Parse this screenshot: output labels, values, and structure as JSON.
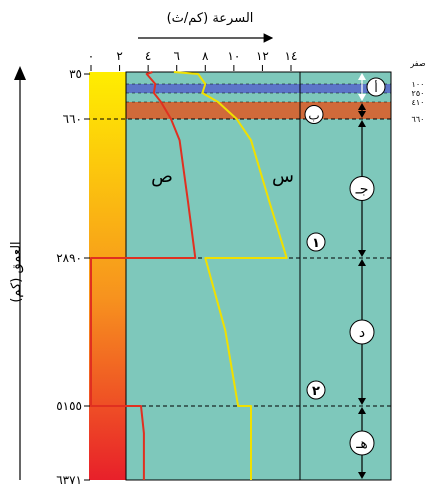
{
  "chart_data": {
    "type": "line",
    "title": "",
    "xlabel": "السرعة (كم/ث)",
    "ylabel": "العمق (كم)",
    "x_ticks": [
      "٠",
      "٢",
      "٤",
      "٦",
      "٨",
      "١٠",
      "١٢",
      "١٤"
    ],
    "x_tick_values": [
      0,
      2,
      4,
      6,
      8,
      10,
      12,
      14
    ],
    "xlim": [
      0,
      14
    ],
    "depth_labels": [
      {
        "value": 35,
        "label": "٣٥"
      },
      {
        "value": 660,
        "label": "٦٦٠"
      },
      {
        "value": 2890,
        "label": "٢٨٩٠"
      },
      {
        "value": 5155,
        "label": "٥١٥٥"
      },
      {
        "value": 6371,
        "label": "٦٣٧١"
      }
    ],
    "detail_depths": [
      {
        "value": 0,
        "label": "صفر"
      },
      {
        "value": 100,
        "label": "١٠٠"
      },
      {
        "value": 250,
        "label": "٢٥٠"
      },
      {
        "value": 410,
        "label": "٤١٠"
      },
      {
        "value": 660,
        "label": "٦٦٠"
      }
    ],
    "series": [
      {
        "name": "س",
        "color": "#f0e000",
        "points": [
          [
            5.8,
            0
          ],
          [
            7.5,
            35
          ],
          [
            8.0,
            100
          ],
          [
            7.8,
            250
          ],
          [
            8.9,
            410
          ],
          [
            10.2,
            660
          ],
          [
            11.2,
            1000
          ],
          [
            12.5,
            2000
          ],
          [
            13.7,
            2890
          ],
          [
            8.0,
            2890
          ],
          [
            9.4,
            4000
          ],
          [
            10.3,
            5155
          ],
          [
            11.2,
            5155
          ],
          [
            11.2,
            6371
          ]
        ]
      },
      {
        "name": "ص",
        "color": "#e03020",
        "points": [
          [
            4.3,
            0
          ],
          [
            3.9,
            35
          ],
          [
            4.5,
            100
          ],
          [
            4.4,
            250
          ],
          [
            4.9,
            410
          ],
          [
            5.6,
            660
          ],
          [
            6.2,
            1000
          ],
          [
            6.8,
            2000
          ],
          [
            7.3,
            2890
          ],
          [
            0,
            2890
          ],
          [
            0,
            5155
          ],
          [
            3.5,
            5155
          ],
          [
            3.7,
            5600
          ],
          [
            3.7,
            6371
          ]
        ]
      }
    ],
    "layers": [
      {
        "letter": "أ",
        "from": 0,
        "to": 410
      },
      {
        "letter": "ب",
        "from": 410,
        "to": 660
      },
      {
        "letter": "جـ",
        "from": 660,
        "to": 2890
      },
      {
        "letter": "د",
        "from": 2890,
        "to": 5155
      },
      {
        "letter": "هـ",
        "from": 5155,
        "to": 6371
      }
    ],
    "boundaries": [
      {
        "label": "١",
        "depth": 2890
      },
      {
        "label": "٢",
        "depth": 5155
      }
    ]
  },
  "colors": {
    "mantle": "#7ec8bb",
    "crust_band": "#5c75c8",
    "transition_band": "#d06a3a",
    "s_wave": "#f0e000",
    "p_wave": "#e03020",
    "temp_top": "#ffee00",
    "temp_bottom": "#e8202a"
  }
}
